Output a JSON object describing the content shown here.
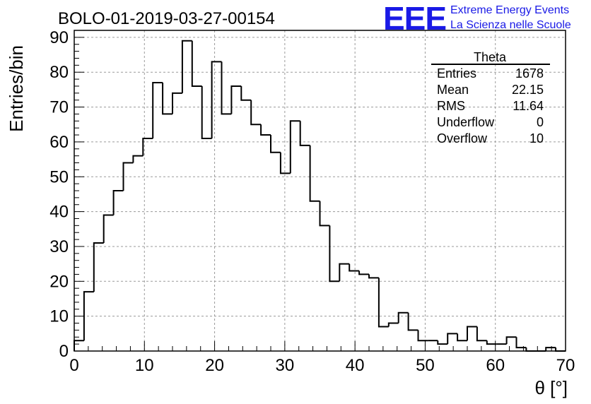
{
  "chart_data": {
    "type": "bar",
    "title": "BOLO-01-2019-03-27-00154",
    "xlabel": "θ [°]",
    "ylabel": "Entries/bin",
    "xlim": [
      0,
      70
    ],
    "ylim": [
      0,
      92
    ],
    "bin_width": 1.4,
    "x_ticks": [
      0,
      10,
      20,
      30,
      40,
      50,
      60,
      70
    ],
    "y_ticks": [
      0,
      10,
      20,
      30,
      40,
      50,
      60,
      70,
      80,
      90
    ],
    "grid": true,
    "values": [
      3,
      17,
      31,
      39,
      46,
      54,
      56,
      61,
      77,
      68,
      74,
      89,
      76,
      61,
      83,
      68,
      76,
      72,
      65,
      62,
      57,
      51,
      66,
      59,
      43,
      36,
      20,
      25,
      23,
      22,
      21,
      7,
      8,
      11,
      6,
      3,
      3,
      2,
      5,
      3,
      7,
      3,
      2,
      2,
      4,
      1,
      0,
      0,
      1,
      0
    ],
    "stats_box": {
      "title": "Theta",
      "rows": [
        {
          "label": "Entries",
          "value": "1678"
        },
        {
          "label": "Mean",
          "value": "22.15"
        },
        {
          "label": "RMS",
          "value": "11.64"
        },
        {
          "label": "Underflow",
          "value": "0"
        },
        {
          "label": "Overflow",
          "value": "10"
        }
      ]
    }
  },
  "logo": {
    "mark": "EEE",
    "line1": "Extreme Energy Events",
    "line2": "La Scienza nelle Scuole",
    "color": "#1a1ae6"
  }
}
